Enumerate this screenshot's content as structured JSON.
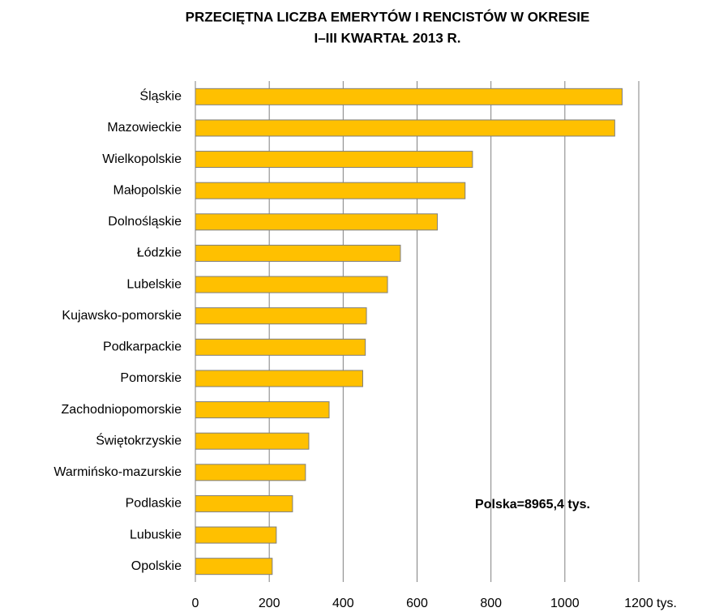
{
  "chart_data": {
    "type": "bar",
    "orientation": "horizontal",
    "title": [
      "PRZECIĘTNA LICZBA EMERYTÓW I RENCISTÓW W OKRESIE",
      "I–III KWARTAŁ 2013 R."
    ],
    "x_label": "tys.",
    "annotation": "Polska=8965,4 tys.",
    "categories": [
      "Śląskie",
      "Mazowieckie",
      "Wielkopolskie",
      "Małopolskie",
      "Dolnośląskie",
      "Łódzkie",
      "Lubelskie",
      "Kujawsko-pomorskie",
      "Podkarpackie",
      "Pomorskie",
      "Zachodniopomorskie",
      "Świętokrzyskie",
      "Warmińsko-mazurskie",
      "Podlaskie",
      "Lubuskie",
      "Opolskie"
    ],
    "values": [
      1155,
      1135,
      750,
      730,
      655,
      555,
      520,
      463,
      460,
      453,
      362,
      307,
      298,
      263,
      219,
      208
    ],
    "color": "#ffc000",
    "xlim": [
      0,
      1200
    ],
    "xticks": [
      0,
      200,
      400,
      600,
      800,
      1000,
      1200
    ],
    "grid": true
  }
}
